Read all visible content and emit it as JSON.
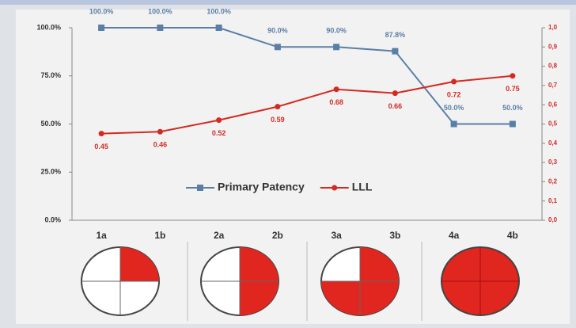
{
  "chart_data": {
    "type": "line",
    "categories": [
      "1a",
      "1b",
      "2a",
      "2b",
      "3a",
      "3b",
      "4a",
      "4b"
    ],
    "series": [
      {
        "name": "Primary Patency",
        "color": "#5a7fa6",
        "values": [
          100,
          100,
          100,
          90,
          90,
          87.8,
          50,
          50
        ],
        "value_labels": [
          "100.0%",
          "100.0%",
          "100.0%",
          "90.0%",
          "90.0%",
          "87.8%",
          "50.0%",
          "50.0%"
        ]
      },
      {
        "name": "LLL",
        "color": "#d42a22",
        "axis": "y2",
        "values": [
          0.45,
          0.46,
          0.52,
          0.59,
          0.68,
          0.66,
          0.72,
          0.75
        ]
      }
    ],
    "ylim": [
      0,
      100
    ],
    "yticks": [
      {
        "value": 0,
        "label": "0.0%"
      },
      {
        "value": 25,
        "label": "25.0%"
      },
      {
        "value": 50,
        "label": "50.0%"
      },
      {
        "value": 75,
        "label": "75.0%"
      },
      {
        "value": 100,
        "label": "100.0%"
      }
    ],
    "y2lim": [
      0,
      1
    ],
    "y2ticks": [
      {
        "value": 0,
        "label": "0,0"
      },
      {
        "value": 0.1,
        "label": "0,1"
      },
      {
        "value": 0.2,
        "label": "0,2"
      },
      {
        "value": 0.3,
        "label": "0,3"
      },
      {
        "value": 0.4,
        "label": "0,4"
      },
      {
        "value": 0.5,
        "label": "0,5"
      },
      {
        "value": 0.6,
        "label": "0,6"
      },
      {
        "value": 0.7,
        "label": "0,7"
      },
      {
        "value": 0.8,
        "label": "0,8"
      },
      {
        "value": 0.9,
        "label": "0,9"
      },
      {
        "value": 1,
        "label": "1,0"
      }
    ]
  }
}
